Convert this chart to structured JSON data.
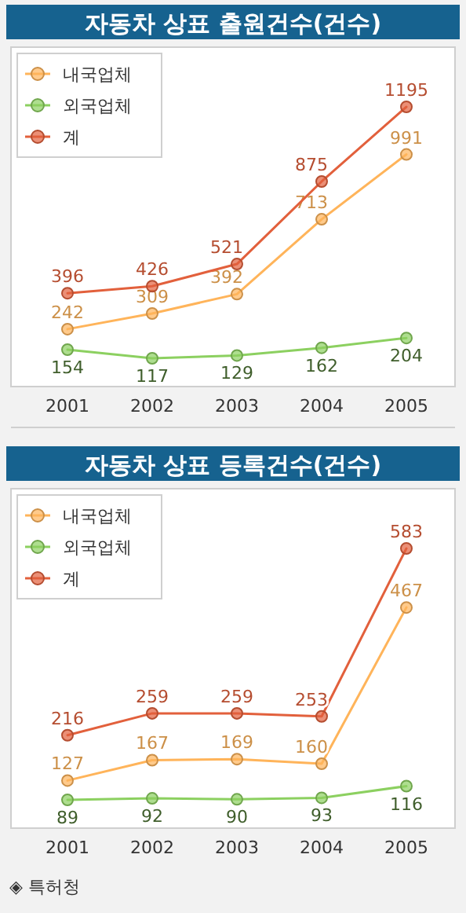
{
  "chart_data": [
    {
      "type": "line",
      "title": "자동차 상표 출원건수(건수)",
      "categories": [
        "2001",
        "2002",
        "2003",
        "2004",
        "2005"
      ],
      "relative": false,
      "data_labels": true,
      "legend": "top left",
      "marker": "circle",
      "line_style": "solid",
      "grid": false,
      "series": [
        {
          "name": "내국업체",
          "color": "#ffb45a",
          "values": [
            242,
            309,
            392,
            713,
            991
          ]
        },
        {
          "name": "외국업체",
          "color": "#8cd060",
          "values": [
            154,
            117,
            129,
            162,
            204
          ]
        },
        {
          "name": "계",
          "color": "#e2603c",
          "values": [
            396,
            426,
            521,
            875,
            1195
          ]
        }
      ]
    },
    {
      "type": "line",
      "title": "자동차 상표 등록건수(건수)",
      "categories": [
        "2001",
        "2002",
        "2003",
        "2004",
        "2005"
      ],
      "data_labels": true,
      "legend": "top left",
      "marker": "circle",
      "line_style": "solid",
      "grid": false,
      "annotations": [
        "◈ 특허청"
      ],
      "series": [
        {
          "name": "내국업체",
          "color": "#ffb45a",
          "values": [
            127,
            167,
            169,
            160,
            467
          ]
        },
        {
          "name": "외국업체",
          "color": "#8cd060",
          "values": [
            89,
            92,
            90,
            93,
            116
          ]
        },
        {
          "name": "계",
          "color": "#e2603c",
          "values": [
            216,
            259,
            259,
            253,
            583
          ]
        }
      ]
    }
  ]
}
